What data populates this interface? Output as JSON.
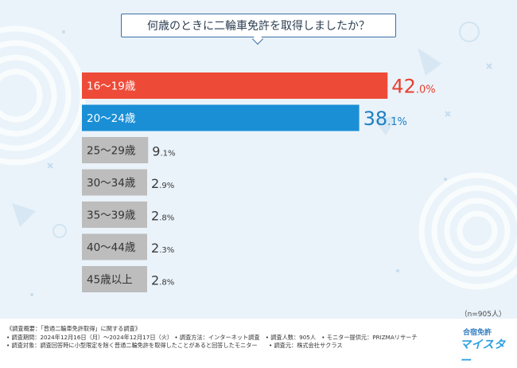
{
  "title": "何歳のときに二輪車免許を取得しましたか？",
  "sample_note": "（n=905人）",
  "colors": {
    "first": "#ee4a38",
    "second": "#1a8fd6",
    "rest": "#bdbdbd",
    "first_value_text": "#e8402f",
    "second_value_text": "#1c80c4",
    "rest_value_text": "#3a3a3a"
  },
  "chart_data": {
    "type": "bar",
    "orientation": "horizontal",
    "title": "何歳のときに二輪車免許を取得しましたか？",
    "categories": [
      "16〜19歳",
      "20〜24歳",
      "25〜29歳",
      "30〜34歳",
      "35〜39歳",
      "40〜44歳",
      "45歳以上"
    ],
    "values": [
      42.0,
      38.1,
      9.1,
      2.9,
      2.8,
      2.3,
      2.8
    ],
    "value_labels": [
      "42.0%",
      "38.1%",
      "9.1%",
      "2.9%",
      "2.8%",
      "2.3%",
      "2.8%"
    ],
    "unit": "%",
    "grid": false,
    "legend": "none"
  },
  "footer": {
    "lines": [
      "《調査概要：「普通二輪車免許取得」に関する調査》",
      "• 調査期間：2024年12月16日（月）〜2024年12月17日（火） • 調査方法：インターネット調査　• 調査人数：905人　• モニター提供元：PRIZMAリサーチ",
      "• 調査対象：調査回答時に小型限定を除く普通二輪免許を取得したことがあると回答したモニター　　• 調査元：株式会社サクラス"
    ]
  },
  "logo": {
    "top": "合宿免許",
    "main": "マイスター"
  }
}
